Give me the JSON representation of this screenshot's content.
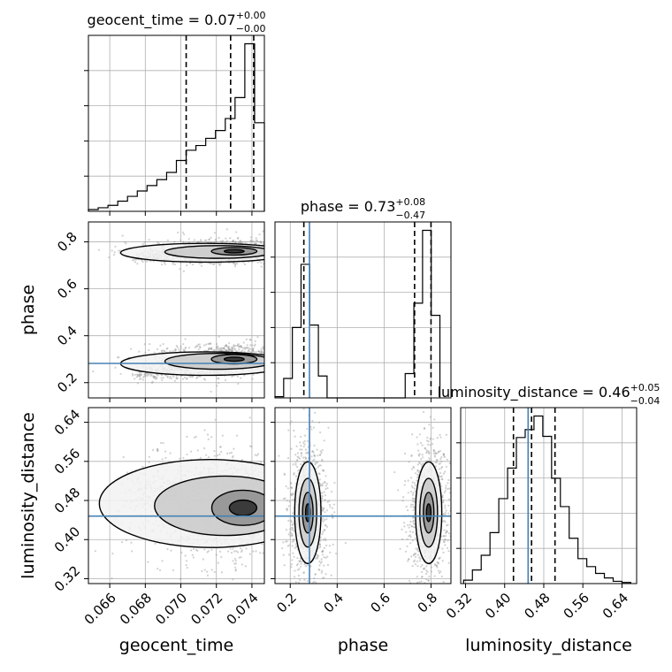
{
  "chart_data": {
    "type": "corner",
    "parameters": [
      {
        "name": "geocent_time",
        "label": "geocent_time",
        "title": {
          "prefix": "geocent_time = ",
          "value": "0.07",
          "plus": "+0.00",
          "minus": "−0.00"
        },
        "range": [
          0.0648,
          0.0747
        ],
        "ticks": [
          0.066,
          0.068,
          0.07,
          0.072,
          0.074
        ],
        "tick_labels": [
          "0.066",
          "0.068",
          "0.070",
          "0.072",
          "0.074"
        ],
        "quantiles": [
          0.0703,
          0.0728,
          0.0741
        ],
        "truth": null,
        "hist": {
          "edges": [
            0.0648,
            0.06535,
            0.0659,
            0.06645,
            0.067,
            0.06755,
            0.0681,
            0.06865,
            0.0692,
            0.06975,
            0.0703,
            0.07085,
            0.0714,
            0.07195,
            0.0725,
            0.07305,
            0.0736,
            0.07415,
            0.0747
          ],
          "counts": [
            0.3,
            0.6,
            1.0,
            1.7,
            2.5,
            3.4,
            4.3,
            5.3,
            6.5,
            8.5,
            10.2,
            11.0,
            12.2,
            13.5,
            15.5,
            19.0,
            28.0,
            14.8
          ]
        }
      },
      {
        "name": "phase",
        "label": "phase",
        "title": {
          "prefix": "phase = ",
          "value": "0.73",
          "plus": "+0.08",
          "minus": "−0.47"
        },
        "range": [
          0.135,
          0.885
        ],
        "ticks": [
          0.2,
          0.4,
          0.6,
          0.8
        ],
        "tick_labels": [
          "0.2",
          "0.4",
          "0.6",
          "0.8"
        ],
        "quantiles": [
          0.258,
          0.73,
          0.8
        ],
        "truth": 0.282,
        "hist": {
          "edges": [
            0.135,
            0.172,
            0.209,
            0.246,
            0.283,
            0.32,
            0.357,
            0.394,
            0.431,
            0.468,
            0.505,
            0.542,
            0.579,
            0.616,
            0.653,
            0.69,
            0.727,
            0.764,
            0.801,
            0.838
          ],
          "counts": [
            0.05,
            0.8,
            2.9,
            5.5,
            3.0,
            0.9,
            0.0,
            0.0,
            0.0,
            0.0,
            0.0,
            0.0,
            0.0,
            0.0,
            0.0,
            1.0,
            3.9,
            6.9,
            3.4
          ]
        }
      },
      {
        "name": "luminosity_distance",
        "label": "luminosity_distance",
        "title": {
          "prefix": "luminosity_distance = ",
          "value": "0.46",
          "plus": "+0.05",
          "minus": "−0.04"
        },
        "range": [
          0.31,
          0.67
        ],
        "ticks": [
          0.32,
          0.4,
          0.48,
          0.56,
          0.64
        ],
        "tick_labels": [
          "0.32",
          "0.40",
          "0.48",
          "0.56",
          "0.64"
        ],
        "quantiles": [
          0.418,
          0.455,
          0.503
        ],
        "truth": 0.448,
        "hist": {
          "edges": [
            0.316,
            0.334,
            0.352,
            0.37,
            0.388,
            0.406,
            0.424,
            0.442,
            0.46,
            0.478,
            0.496,
            0.514,
            0.532,
            0.55,
            0.568,
            0.586,
            0.604,
            0.622,
            0.64,
            0.658
          ],
          "counts": [
            0.3,
            1.2,
            2.5,
            4.5,
            7.5,
            10.2,
            12.9,
            13.6,
            14.8,
            13.0,
            9.3,
            6.8,
            4.0,
            2.2,
            1.5,
            0.9,
            0.5,
            0.2,
            0.1
          ]
        }
      }
    ],
    "pairs": [
      {
        "x": "geocent_time",
        "y": "phase",
        "truth": {
          "x": null,
          "y": 0.282
        },
        "modes": [
          {
            "cx": 0.073,
            "cy": 0.76,
            "sx": 0.0016,
            "sy": 0.02,
            "tail": {
              "from": 0.0672,
              "cy": 0.735
            }
          },
          {
            "cx": 0.073,
            "cy": 0.3,
            "sx": 0.0016,
            "sy": 0.025,
            "tail": {
              "from": 0.0672,
              "cy": 0.225
            }
          }
        ]
      },
      {
        "x": "geocent_time",
        "y": "luminosity_distance",
        "truth": {
          "x": null,
          "y": 0.448
        },
        "modes": [
          {
            "cx": 0.0735,
            "cy": 0.465,
            "sx": 0.0022,
            "sy": 0.045,
            "tail": {
              "from": 0.0668,
              "cy": 0.5
            }
          }
        ]
      },
      {
        "x": "phase",
        "y": "luminosity_distance",
        "truth": {
          "x": 0.282,
          "y": 0.448
        },
        "modes": [
          {
            "cx": 0.275,
            "cy": 0.455,
            "sx": 0.028,
            "sy": 0.052
          },
          {
            "cx": 0.79,
            "cy": 0.455,
            "sx": 0.028,
            "sy": 0.052
          }
        ]
      }
    ],
    "colors": {
      "truth": "#4682b4",
      "hist": "#000000",
      "grid": "#b0b0b0",
      "scatter": "#9a9a9a",
      "contour": "#000000"
    },
    "grid": true
  }
}
